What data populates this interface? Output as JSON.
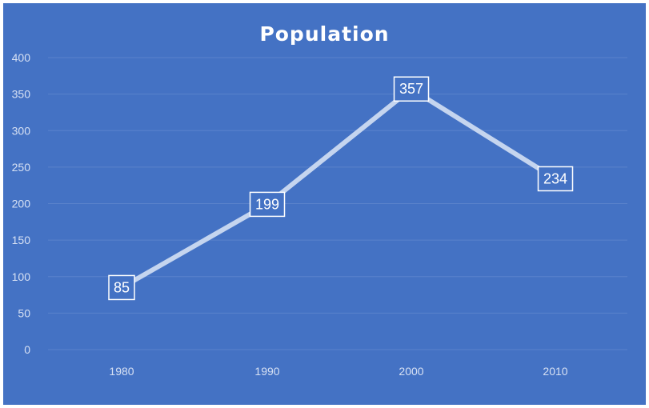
{
  "chart_data": {
    "type": "line",
    "title": "Population",
    "xlabel": "",
    "ylabel": "",
    "categories": [
      "1980",
      "1990",
      "2000",
      "2010"
    ],
    "series": [
      {
        "values": [
          85,
          199,
          357,
          234
        ]
      }
    ],
    "data_labels": [
      "85",
      "199",
      "357",
      "234"
    ],
    "y_ticks": [
      "0",
      "50",
      "100",
      "150",
      "200",
      "250",
      "300",
      "350",
      "400"
    ],
    "ylim": [
      0,
      400
    ],
    "grid": true,
    "legend": "none",
    "colors": {
      "background": "#4472c4",
      "line": "#c5d5ef",
      "gridline": "#5a82cb",
      "label_border": "#ffffff",
      "label_fill": "#4472c4"
    }
  }
}
